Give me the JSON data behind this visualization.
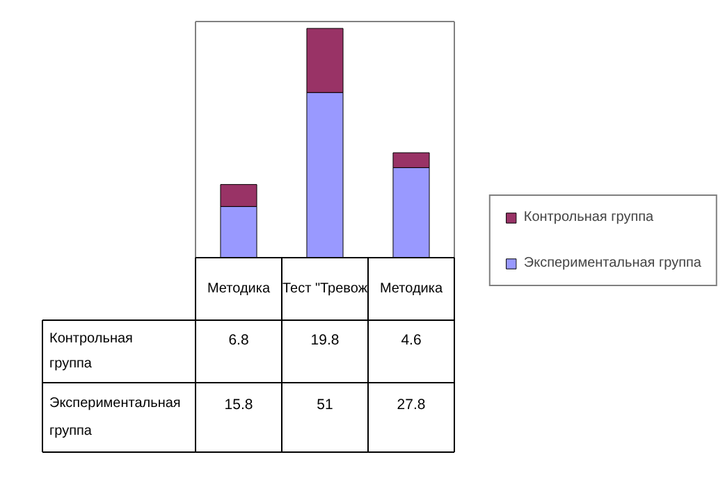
{
  "chart_data": {
    "type": "bar",
    "stacked": true,
    "categories": [
      "Методика",
      "Тест \"Тревож",
      "Методика"
    ],
    "series": [
      {
        "name": "Экспериментальная группа",
        "color": "#9999ff",
        "values": [
          15.8,
          51,
          27.8
        ]
      },
      {
        "name": "Контрольная группа",
        "color": "#993366",
        "values": [
          6.8,
          19.8,
          4.6
        ]
      }
    ],
    "data_labels": true,
    "legend": "right",
    "tick_labels": "x"
  }
}
